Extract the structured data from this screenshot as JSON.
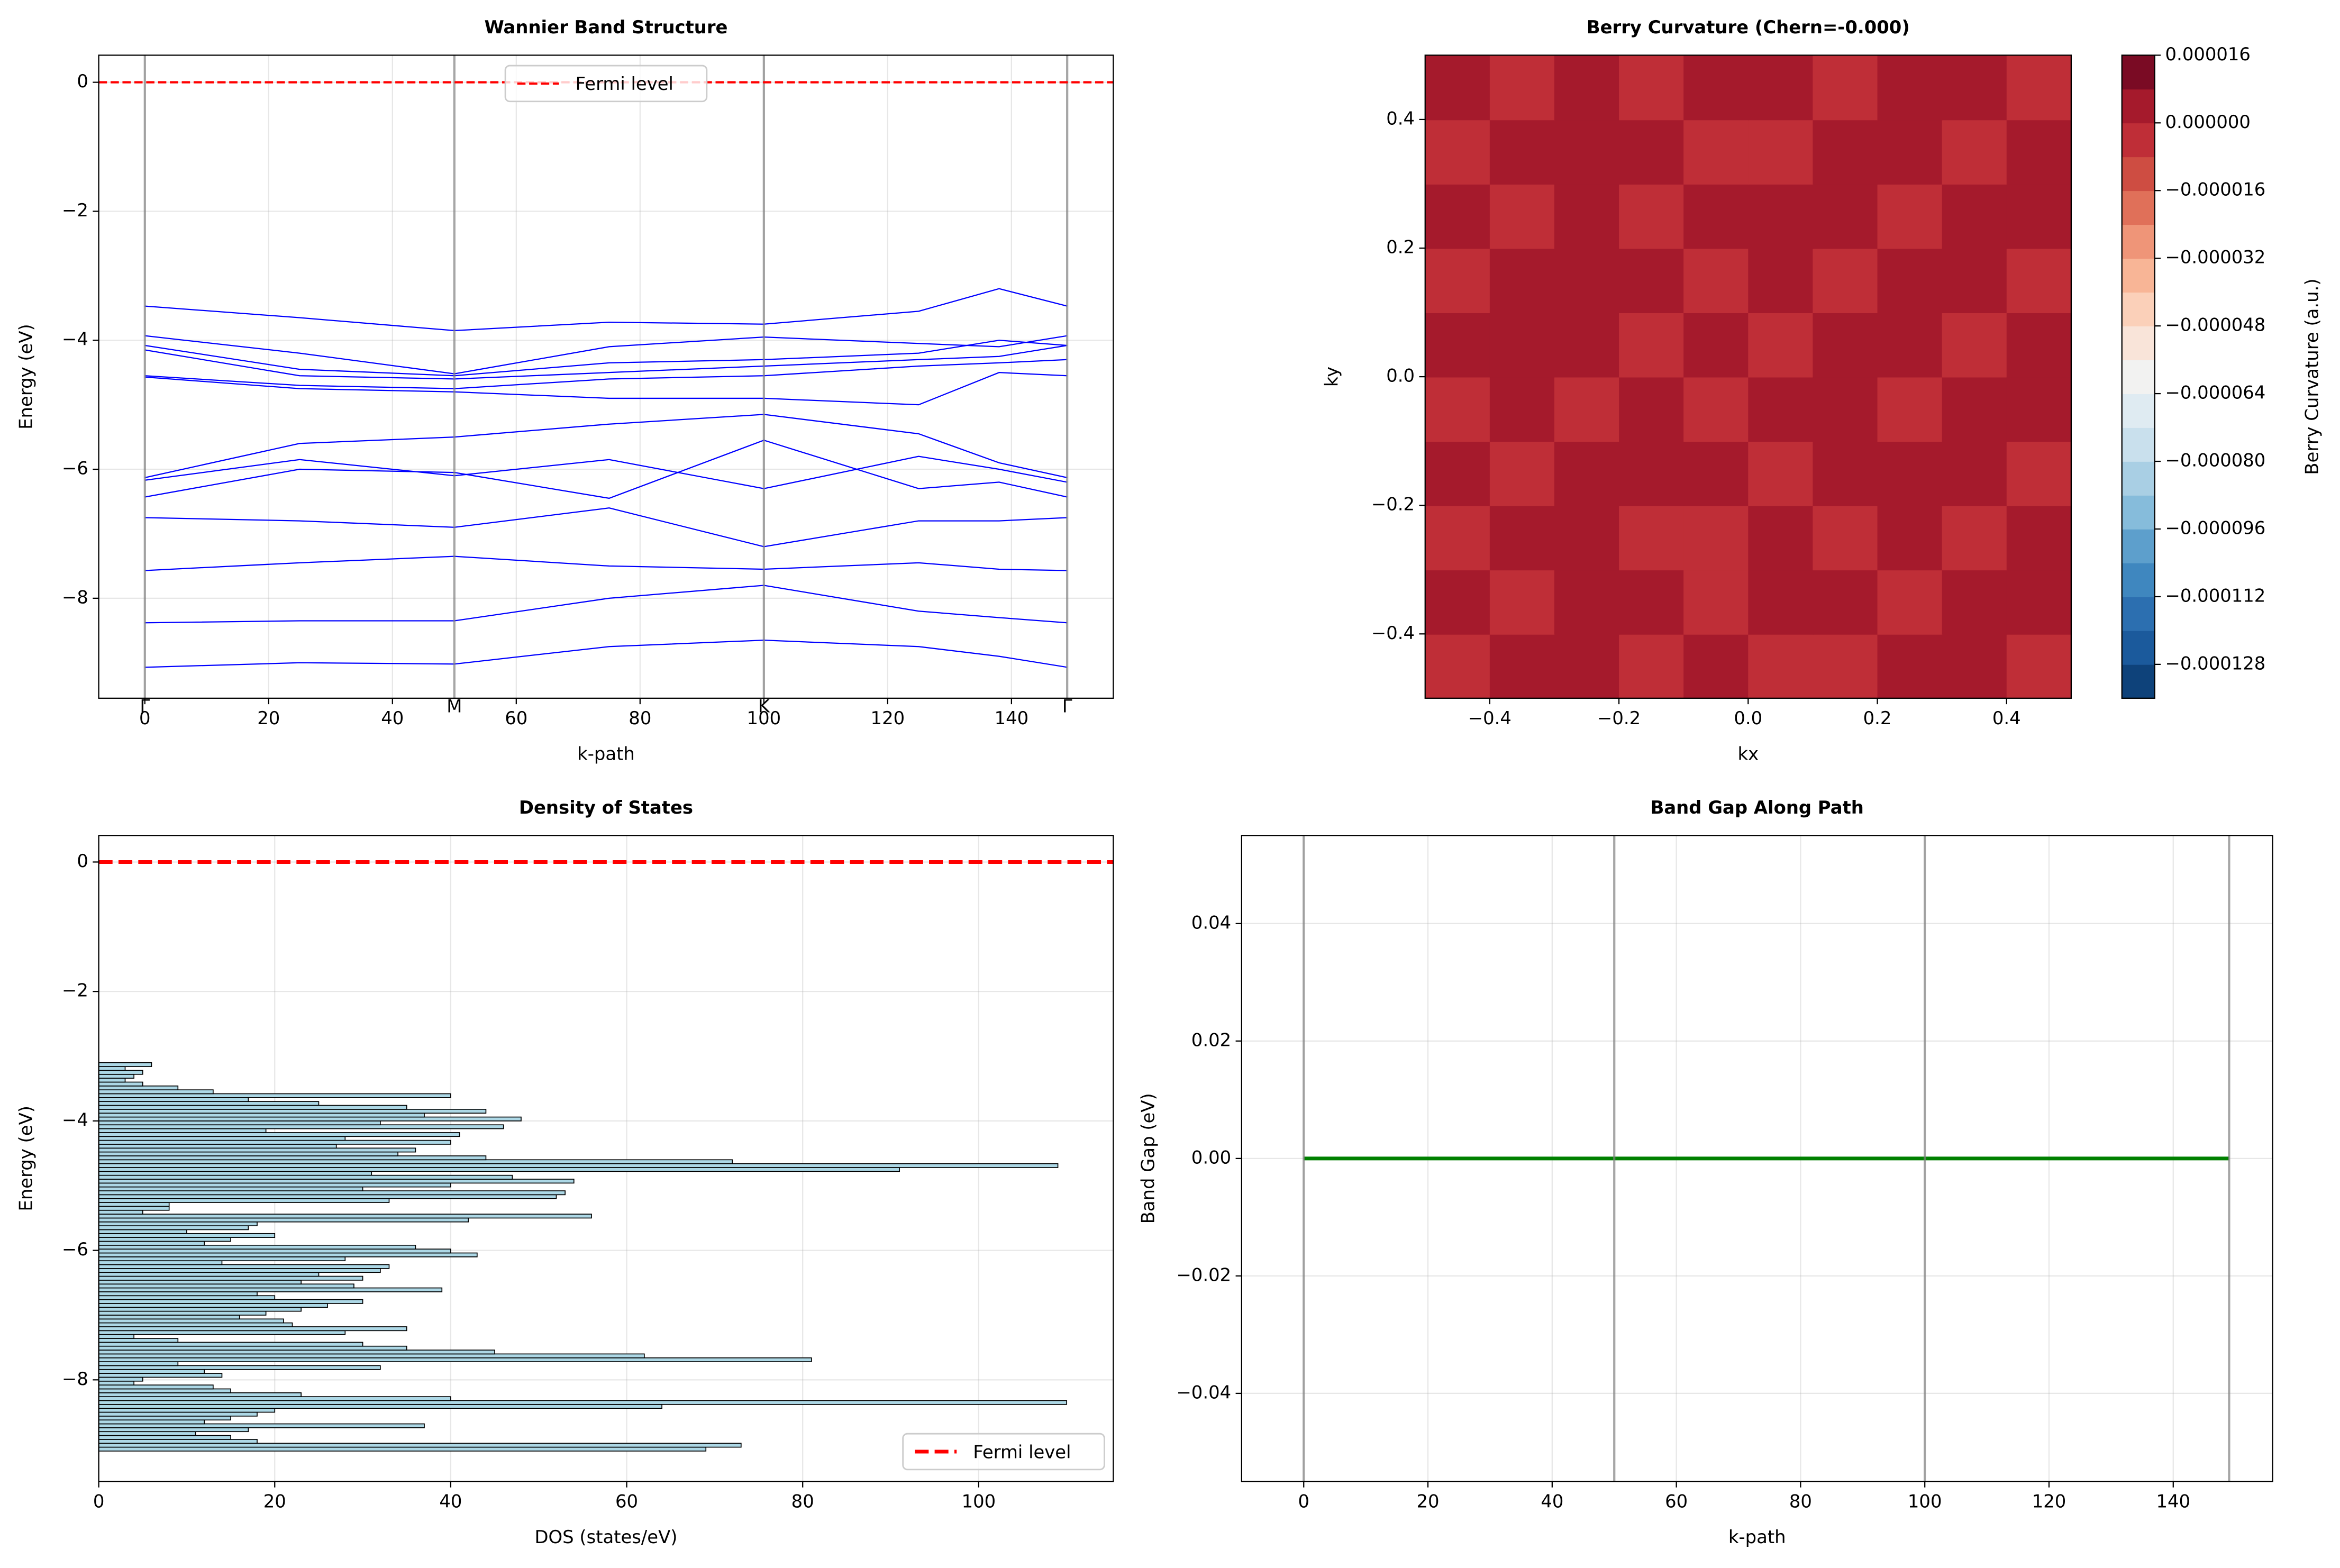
{
  "chart_data": [
    {
      "type": "line",
      "title": "Wannier Band Structure",
      "xlabel": "k-path",
      "ylabel": "Energy (eV)",
      "xlim": [
        -7.45,
        156.45
      ],
      "ylim": [
        -9.55,
        0.42
      ],
      "xticks": [
        0,
        20,
        40,
        60,
        80,
        100,
        120,
        140
      ],
      "yticks": [
        {
          "value": -8,
          "label": "−8"
        },
        {
          "value": -6,
          "label": "−6"
        },
        {
          "value": -4,
          "label": "−4"
        },
        {
          "value": -2,
          "label": "−2"
        },
        0
      ],
      "grid": true,
      "legend": "upper center",
      "x": [
        0,
        25,
        50,
        75,
        100,
        125,
        138,
        149
      ],
      "series": [
        {
          "color": "#0000ff",
          "values": [
            -3.47,
            -3.65,
            -3.85,
            -3.72,
            -3.75,
            -3.55,
            -3.2,
            -3.47
          ]
        },
        {
          "color": "#0000ff",
          "values": [
            -3.93,
            -4.2,
            -4.52,
            -4.1,
            -3.95,
            -4.05,
            -4.1,
            -3.93
          ]
        },
        {
          "color": "#0000ff",
          "values": [
            -4.08,
            -4.45,
            -4.55,
            -4.35,
            -4.3,
            -4.2,
            -4.0,
            -4.08
          ]
        },
        {
          "color": "#0000ff",
          "values": [
            -4.15,
            -4.55,
            -4.6,
            -4.5,
            -4.4,
            -4.3,
            -4.25,
            -4.08
          ]
        },
        {
          "color": "#0000ff",
          "values": [
            -4.55,
            -4.7,
            -4.75,
            -4.6,
            -4.55,
            -4.4,
            -4.35,
            -4.3
          ]
        },
        {
          "color": "#0000ff",
          "values": [
            -4.57,
            -4.75,
            -4.8,
            -4.9,
            -4.9,
            -5.0,
            -4.5,
            -4.55
          ]
        },
        {
          "color": "#0000ff",
          "values": [
            -6.13,
            -5.6,
            -5.5,
            -5.3,
            -5.15,
            -5.45,
            -5.9,
            -6.13
          ]
        },
        {
          "color": "#0000ff",
          "values": [
            -6.17,
            -5.85,
            -6.1,
            -5.85,
            -6.3,
            -5.8,
            -6.0,
            -6.2
          ]
        },
        {
          "color": "#0000ff",
          "values": [
            -6.43,
            -6.0,
            -6.05,
            -6.45,
            -5.55,
            -6.3,
            -6.2,
            -6.43
          ]
        },
        {
          "color": "#0000ff",
          "values": [
            -6.75,
            -6.8,
            -6.9,
            -6.6,
            -7.2,
            -6.8,
            -6.8,
            -6.75
          ]
        },
        {
          "color": "#0000ff",
          "values": [
            -7.57,
            -7.45,
            -7.35,
            -7.5,
            -7.55,
            -7.45,
            -7.55,
            -7.57
          ]
        },
        {
          "color": "#0000ff",
          "values": [
            -8.38,
            -8.35,
            -8.35,
            -8.0,
            -7.8,
            -8.2,
            -8.3,
            -8.38
          ]
        },
        {
          "color": "#0000ff",
          "values": [
            -9.07,
            -9.0,
            -9.02,
            -8.75,
            -8.65,
            -8.75,
            -8.9,
            -9.07
          ]
        }
      ],
      "vlines": [
        {
          "x": 0,
          "label": "Γ"
        },
        {
          "x": 50,
          "label": "M"
        },
        {
          "x": 100,
          "label": "K"
        },
        {
          "x": 149,
          "label": "Γ"
        }
      ],
      "hlines": [
        {
          "y": 0,
          "name": "Fermi level",
          "color": "#ff0000",
          "linewidth": 1.5
        }
      ]
    },
    {
      "type": "contour",
      "title": "Berry Curvature (Chern=-0.000)",
      "xlabel": "kx",
      "ylabel": "ky",
      "xlim": [
        -0.5,
        0.5
      ],
      "ylim": [
        -0.5,
        0.5
      ],
      "xticks": [
        {
          "value": -0.4,
          "label": "−0.4"
        },
        {
          "value": -0.2,
          "label": "−0.2"
        },
        {
          "value": 0,
          "label": "0.0"
        },
        {
          "value": 0.2,
          "label": "0.2"
        },
        {
          "value": 0.4,
          "label": "0.4"
        }
      ],
      "yticks": [
        {
          "value": -0.4,
          "label": "−0.4"
        },
        {
          "value": -0.2,
          "label": "−0.2"
        },
        {
          "value": 0,
          "label": "0.0"
        },
        {
          "value": 0.2,
          "label": "0.2"
        },
        {
          "value": 0.4,
          "label": "0.4"
        }
      ],
      "x": [
        -0.45,
        -0.35,
        -0.25,
        -0.15,
        -0.05,
        0.05,
        0.15,
        0.25,
        0.35,
        0.45
      ],
      "y": [
        -0.45,
        -0.35,
        -0.25,
        -0.15,
        -0.05,
        0.05,
        0.15,
        0.25,
        0.35,
        0.45
      ],
      "z": [
        [
          -4e-06,
          4e-06,
          4e-06,
          -4e-06,
          4e-06,
          -4e-06,
          -4e-06,
          4e-06,
          4e-06,
          -4e-06
        ],
        [
          4e-06,
          -4e-06,
          4e-06,
          4e-06,
          -4e-06,
          4e-06,
          4e-06,
          -4e-06,
          4e-06,
          4e-06
        ],
        [
          -4e-06,
          4e-06,
          4e-06,
          -4e-06,
          -4e-06,
          4e-06,
          -4e-06,
          4e-06,
          -4e-06,
          4e-06
        ],
        [
          4e-06,
          -4e-06,
          4e-06,
          4e-06,
          4e-06,
          -4e-06,
          4e-06,
          4e-06,
          4e-06,
          -4e-06
        ],
        [
          -4e-06,
          4e-06,
          -4e-06,
          4e-06,
          -4e-06,
          4e-06,
          4e-06,
          -4e-06,
          4e-06,
          4e-06
        ],
        [
          4e-06,
          4e-06,
          4e-06,
          -4e-06,
          4e-06,
          -4e-06,
          4e-06,
          4e-06,
          -4e-06,
          4e-06
        ],
        [
          -4e-06,
          4e-06,
          4e-06,
          4e-06,
          -4e-06,
          4e-06,
          -4e-06,
          4e-06,
          4e-06,
          -4e-06
        ],
        [
          4e-06,
          -4e-06,
          4e-06,
          -4e-06,
          4e-06,
          4e-06,
          4e-06,
          -4e-06,
          4e-06,
          4e-06
        ],
        [
          -4e-06,
          4e-06,
          4e-06,
          4e-06,
          -4e-06,
          -4e-06,
          4e-06,
          4e-06,
          -4e-06,
          4e-06
        ],
        [
          4e-06,
          -4e-06,
          4e-06,
          -4e-06,
          4e-06,
          4e-06,
          -4e-06,
          4e-06,
          4e-06,
          -4e-06
        ]
      ],
      "colorbar": {
        "label": "Berry Curvature (a.u.)",
        "levels": [
          -0.000136,
          -0.000128,
          -0.00012,
          -0.000112,
          -0.000104,
          -9.6e-05,
          -8.8e-05,
          -8e-05,
          -7.2e-05,
          -6.4e-05,
          -5.6e-05,
          -4.8e-05,
          -4e-05,
          -3.2e-05,
          -2.4e-05,
          -1.6e-05,
          -8e-06,
          0,
          8e-06,
          1.6e-05
        ],
        "colors": [
          "#0e427a",
          "#1b5a9c",
          "#2c6fb0",
          "#3f87bf",
          "#5d9fcc",
          "#86bcdb",
          "#a9cfe4",
          "#c9e0ed",
          "#dfebf2",
          "#f2f2f1",
          "#f9e4d9",
          "#fbd0b9",
          "#f8b596",
          "#ef9578",
          "#e07059",
          "#ce4d42",
          "#bf2e37",
          "#a51a2c",
          "#7a0b24"
        ],
        "ticks": [
          {
            "value": -0.000128,
            "label": "−0.000128"
          },
          {
            "value": -0.000112,
            "label": "−0.000112"
          },
          {
            "value": -9.6e-05,
            "label": "−0.000096"
          },
          {
            "value": -8e-05,
            "label": "−0.000080"
          },
          {
            "value": -6.4e-05,
            "label": "−0.000064"
          },
          {
            "value": -4.8e-05,
            "label": "−0.000048"
          },
          {
            "value": -3.2e-05,
            "label": "−0.000032"
          },
          {
            "value": -1.6e-05,
            "label": "−0.000016"
          },
          {
            "value": 0,
            "label": "0.000000"
          },
          {
            "value": 1.6e-05,
            "label": "0.000016"
          }
        ]
      }
    },
    {
      "type": "histogram",
      "orientation": "horizontal",
      "title": "Density of States",
      "xlabel": "DOS (states/eV)",
      "ylabel": "Energy (eV)",
      "xlim": [
        0,
        115.3
      ],
      "ylim": [
        -9.57,
        0.41
      ],
      "xticks": [
        0,
        20,
        40,
        60,
        80,
        100
      ],
      "yticks": [
        {
          "value": -8,
          "label": "−8"
        },
        {
          "value": -6,
          "label": "−6"
        },
        {
          "value": -4,
          "label": "−4"
        },
        {
          "value": -2,
          "label": "−2"
        },
        0
      ],
      "grid": true,
      "legend": "lower right",
      "color": "#add8e6",
      "edgecolor": "#000000",
      "bins": [
        -9.1,
        -9.04,
        -8.98,
        -8.92,
        -8.86,
        -8.8,
        -8.74,
        -8.68,
        -8.62,
        -8.56,
        -8.5,
        -8.44,
        -8.38,
        -8.32,
        -8.26,
        -8.2,
        -8.14,
        -8.08,
        -8.02,
        -7.96,
        -7.9,
        -7.84,
        -7.78,
        -7.72,
        -7.66,
        -7.6,
        -7.54,
        -7.48,
        -7.42,
        -7.36,
        -7.3,
        -7.24,
        -7.18,
        -7.12,
        -7.06,
        -7.0,
        -6.94,
        -6.88,
        -6.82,
        -6.76,
        -6.7,
        -6.64,
        -6.58,
        -6.52,
        -6.46,
        -6.4,
        -6.34,
        -6.28,
        -6.22,
        -6.16,
        -6.1,
        -6.04,
        -5.98,
        -5.92,
        -5.86,
        -5.8,
        -5.74,
        -5.68,
        -5.62,
        -5.56,
        -5.5,
        -5.44,
        -5.38,
        -5.32,
        -5.26,
        -5.2,
        -5.14,
        -5.08,
        -5.02,
        -4.96,
        -4.9,
        -4.84,
        -4.78,
        -4.72,
        -4.66,
        -4.6,
        -4.54,
        -4.48,
        -4.42,
        -4.36,
        -4.3,
        -4.24,
        -4.18,
        -4.12,
        -4.06,
        -4.0,
        -3.94,
        -3.88,
        -3.82,
        -3.76,
        -3.7,
        -3.64,
        -3.58,
        -3.52,
        -3.46,
        -3.4,
        -3.34,
        -3.28,
        -3.22,
        -3.16,
        -3.1
      ],
      "values": [
        69,
        73,
        18,
        15,
        11,
        17,
        37,
        12,
        15,
        18,
        20,
        64,
        110,
        40,
        23,
        15,
        13,
        4,
        5,
        14,
        12,
        32,
        9,
        81,
        62,
        45,
        35,
        30,
        9,
        4,
        28,
        35,
        22,
        21,
        16,
        19,
        23,
        26,
        30,
        20,
        18,
        39,
        29,
        23,
        30,
        25,
        32,
        33,
        14,
        28,
        43,
        40,
        36,
        12,
        15,
        20,
        10,
        17,
        18,
        42,
        56,
        5,
        8,
        8,
        33,
        52,
        53,
        30,
        40,
        54,
        47,
        31,
        91,
        109,
        72,
        44,
        34,
        36,
        27,
        40,
        28,
        41,
        19,
        46,
        32,
        48,
        37,
        44,
        35,
        25,
        17,
        40,
        13,
        9,
        5,
        3,
        4,
        5,
        3,
        6
      ],
      "hlines": [
        {
          "y": 0,
          "name": "Fermi level",
          "color": "#ff0000",
          "linewidth": 2.5
        }
      ]
    },
    {
      "type": "line",
      "title": "Band Gap Along Path",
      "xlabel": "k-path",
      "ylabel": "Band Gap (eV)",
      "xlim": [
        -10,
        156
      ],
      "ylim": [
        -0.055,
        0.055
      ],
      "xticks": [
        0,
        20,
        40,
        60,
        80,
        100,
        120,
        140
      ],
      "yticks": [
        {
          "value": -0.04,
          "label": "−0.04"
        },
        {
          "value": -0.02,
          "label": "−0.02"
        },
        {
          "value": 0,
          "label": "0.00"
        },
        {
          "value": 0.02,
          "label": "0.02"
        },
        {
          "value": 0.04,
          "label": "0.04"
        }
      ],
      "grid": true,
      "x": [
        0,
        50,
        100,
        149
      ],
      "series": [
        {
          "color": "#008000",
          "linewidth": 2.5,
          "values": [
            0,
            0,
            0,
            0
          ]
        }
      ],
      "vlines": [
        {
          "x": 0
        },
        {
          "x": 50
        },
        {
          "x": 100
        },
        {
          "x": 149
        }
      ]
    }
  ]
}
